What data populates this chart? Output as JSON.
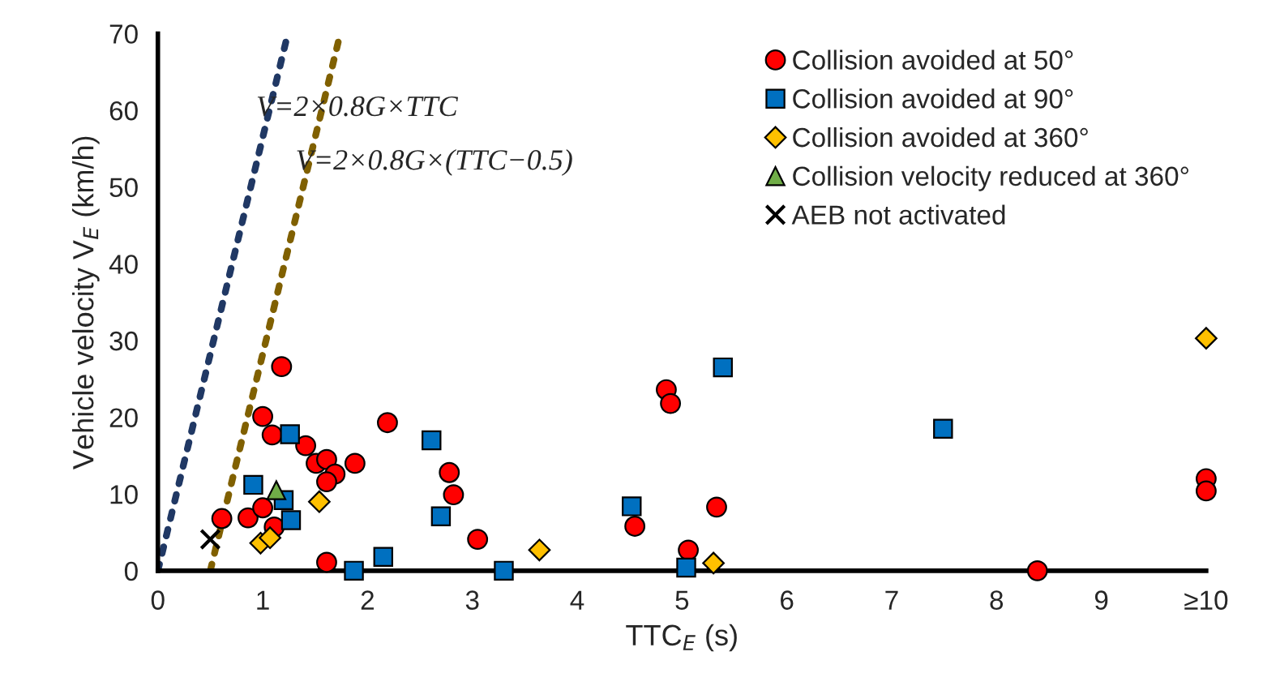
{
  "chart_data": {
    "type": "scatter",
    "xlabel": "TTC$_{E}$ (s)",
    "ylabel": "Vehicle velocity V$_{E}$ (km/h)",
    "xlim": [
      0,
      10
    ],
    "ylim": [
      0,
      70
    ],
    "xticks": [
      0,
      1,
      2,
      3,
      4,
      5,
      6,
      7,
      8,
      9,
      {
        "value": 10,
        "label": "≥10"
      }
    ],
    "yticks": [
      0,
      10,
      20,
      30,
      40,
      50,
      60,
      70
    ],
    "grid": false,
    "legend": "top right",
    "series": [
      {
        "name": "Collision avoided at 50°",
        "color": "#ff0000",
        "marker": "circle",
        "x": [
          0.61,
          1.18,
          1.0,
          1.09,
          1.41,
          1.51,
          1.61,
          1.88,
          1.69,
          1.61,
          2.19,
          0.86,
          1.0,
          1.11,
          1.61,
          2.78,
          2.82,
          3.05,
          4.85,
          4.89,
          4.55,
          5.06,
          5.33,
          8.39,
          10,
          10
        ],
        "values": [
          6.8,
          26.6,
          20.1,
          17.7,
          16.3,
          14.0,
          14.5,
          14.0,
          12.6,
          11.6,
          19.3,
          6.9,
          8.2,
          5.7,
          1.1,
          12.8,
          9.9,
          4.1,
          23.6,
          21.8,
          5.8,
          2.7,
          8.3,
          0,
          12.0,
          10.4
        ]
      },
      {
        "name": "Collision avoided at 90°",
        "color": "#0070c0",
        "marker": "square",
        "x": [
          0.91,
          1.26,
          1.2,
          1.27,
          1.87,
          2.15,
          2.61,
          2.7,
          3.3,
          4.52,
          5.39,
          5.04,
          7.49
        ],
        "values": [
          11.2,
          17.8,
          9.2,
          6.6,
          0,
          1.8,
          17.0,
          7.1,
          0,
          8.4,
          26.5,
          0.4,
          18.5
        ]
      },
      {
        "name": "Collision avoided at 360°",
        "color": "#ffc000",
        "marker": "diamond",
        "x": [
          0.98,
          1.07,
          1.54,
          3.64,
          5.3,
          10
        ],
        "values": [
          3.6,
          4.3,
          9.0,
          2.7,
          1.0,
          30.3
        ]
      },
      {
        "name": "Collision velocity reduced at 360°",
        "color": "#70ad47",
        "marker": "triangle",
        "x": [
          1.13
        ],
        "values": [
          10.5
        ]
      },
      {
        "name": "AEB not activated",
        "color": "#000000",
        "marker": "cross",
        "x": [
          0.5
        ],
        "values": [
          4.1
        ]
      },
      {
        "name": "V=2×0.8G×TTC",
        "type": "line",
        "line_style": "dotted",
        "color": "#203864",
        "x": [
          0,
          1.24
        ],
        "values": [
          0,
          70
        ]
      },
      {
        "name": "V=2×0.8G×(TTC−0.5)",
        "type": "line",
        "line_style": "dotted",
        "color": "#806000",
        "x": [
          0.5,
          1.74
        ],
        "values": [
          0,
          70
        ]
      }
    ]
  }
}
